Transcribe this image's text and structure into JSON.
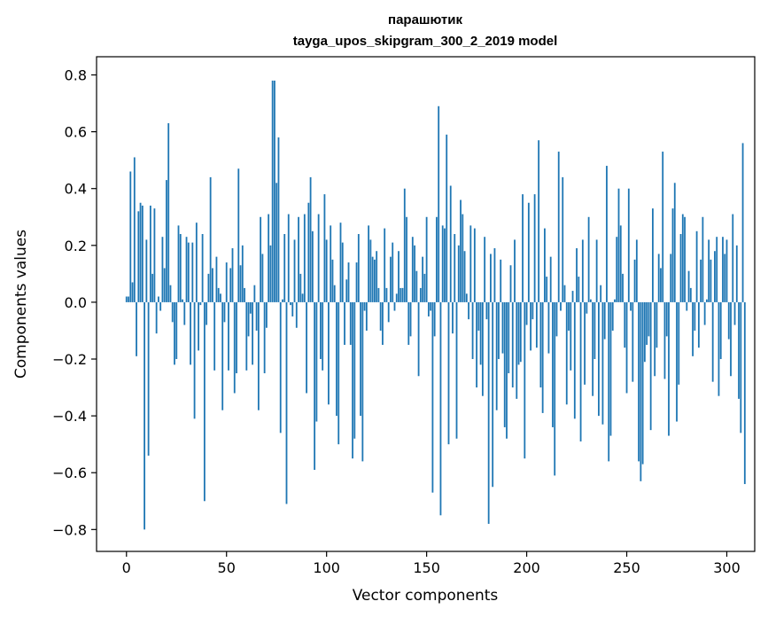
{
  "chart_data": {
    "type": "bar",
    "title": "парашютик",
    "subtitle": "tayga_upos_skipgram_300_2_2019 model",
    "xlabel": "Vector components",
    "ylabel": "Components values",
    "xlim": [
      -14.95,
      313.95
    ],
    "ylim": [
      -0.877,
      0.864
    ],
    "xticks": [
      0,
      50,
      100,
      150,
      200,
      250,
      300
    ],
    "xtick_labels": [
      "0",
      "50",
      "100",
      "150",
      "200",
      "250",
      "300"
    ],
    "yticks": [
      0.8,
      0.6,
      0.4,
      0.2,
      0.0,
      -0.2,
      -0.4,
      -0.6,
      -0.8
    ],
    "ytick_labels": [
      "0.8",
      "0.6",
      "0.4",
      "0.2",
      "0.0",
      "−0.2",
      "−0.4",
      "−0.6",
      "−0.8"
    ],
    "bar_color": "#1f77b4",
    "series": [
      {
        "name": "парашютик",
        "values": [
          0.02,
          0.02,
          0.46,
          0.07,
          0.51,
          -0.19,
          0.32,
          0.35,
          0.34,
          -0.8,
          0.22,
          -0.54,
          0.34,
          0.1,
          0.33,
          -0.11,
          0.02,
          -0.03,
          0.23,
          0.12,
          0.43,
          0.63,
          0.06,
          -0.07,
          -0.22,
          -0.2,
          0.27,
          0.24,
          0.01,
          -0.08,
          0.23,
          0.21,
          -0.22,
          0.21,
          -0.41,
          0.28,
          -0.17,
          -0.01,
          0.24,
          -0.7,
          -0.08,
          0.1,
          0.44,
          0.12,
          -0.24,
          0.16,
          0.05,
          0.03,
          -0.38,
          -0.07,
          0.14,
          -0.24,
          0.12,
          0.19,
          -0.32,
          -0.25,
          0.47,
          0.13,
          0.2,
          0.05,
          -0.24,
          -0.12,
          -0.04,
          -0.22,
          0.06,
          -0.1,
          -0.38,
          0.3,
          0.17,
          -0.25,
          -0.09,
          0.31,
          0.2,
          0.78,
          0.78,
          0.42,
          0.58,
          -0.46,
          0.01,
          0.24,
          -0.71,
          0.31,
          -0.01,
          -0.05,
          0.22,
          -0.09,
          0.3,
          0.1,
          0.03,
          0.31,
          -0.32,
          0.35,
          0.44,
          0.25,
          -0.59,
          -0.42,
          0.31,
          -0.2,
          -0.24,
          0.38,
          0.22,
          -0.36,
          0.27,
          0.15,
          0.06,
          -0.4,
          -0.5,
          0.28,
          0.21,
          -0.15,
          0.08,
          0.14,
          -0.15,
          -0.55,
          -0.48,
          0.14,
          0.24,
          -0.4,
          -0.56,
          -0.03,
          -0.1,
          0.27,
          0.22,
          0.16,
          0.15,
          0.18,
          0.05,
          -0.1,
          -0.15,
          0.26,
          0.05,
          -0.07,
          0.16,
          0.21,
          -0.03,
          0.03,
          0.18,
          0.05,
          0.05,
          0.4,
          0.3,
          -0.15,
          -0.12,
          0.23,
          0.2,
          0.11,
          -0.26,
          0.05,
          0.16,
          0.1,
          0.3,
          -0.05,
          -0.03,
          -0.67,
          -0.12,
          0.3,
          0.69,
          -0.75,
          0.27,
          0.26,
          0.59,
          -0.5,
          0.41,
          -0.11,
          0.24,
          -0.48,
          0.2,
          0.36,
          0.31,
          0.18,
          0.03,
          -0.06,
          0.27,
          -0.2,
          0.26,
          -0.3,
          -0.1,
          -0.22,
          -0.33,
          0.23,
          -0.06,
          -0.78,
          0.17,
          -0.65,
          0.19,
          -0.38,
          -0.2,
          0.15,
          -0.18,
          -0.44,
          -0.48,
          -0.25,
          0.13,
          -0.3,
          0.22,
          -0.34,
          -0.22,
          -0.21,
          0.38,
          -0.55,
          -0.08,
          0.35,
          -0.17,
          -0.06,
          0.38,
          -0.16,
          0.57,
          -0.3,
          -0.39,
          0.26,
          0.09,
          -0.18,
          0.16,
          -0.44,
          -0.61,
          -0.12,
          0.53,
          -0.03,
          0.44,
          0.06,
          -0.36,
          -0.1,
          -0.24,
          0.04,
          -0.41,
          0.19,
          0.09,
          -0.49,
          0.22,
          -0.29,
          -0.04,
          0.3,
          0.01,
          -0.33,
          -0.2,
          0.22,
          -0.4,
          0.06,
          -0.43,
          -0.13,
          0.48,
          -0.56,
          -0.47,
          -0.1,
          0.01,
          0.23,
          0.4,
          0.27,
          0.1,
          -0.16,
          -0.32,
          0.4,
          -0.03,
          -0.28,
          0.15,
          0.22,
          -0.56,
          -0.63,
          -0.57,
          -0.21,
          -0.15,
          -0.12,
          -0.45,
          0.33,
          -0.26,
          -0.16,
          0.17,
          0.12,
          0.53,
          -0.27,
          -0.12,
          -0.47,
          0.17,
          0.33,
          0.42,
          -0.42,
          -0.29,
          0.24,
          0.31,
          0.3,
          -0.03,
          0.11,
          0.05,
          -0.19,
          -0.1,
          0.25,
          -0.16,
          0.15,
          0.3,
          -0.08,
          0.01,
          0.22,
          0.15,
          -0.28,
          0.18,
          0.23,
          -0.33,
          -0.2,
          0.23,
          0.17,
          0.22,
          -0.13,
          -0.26,
          0.31,
          -0.08,
          0.2,
          -0.34,
          -0.46,
          0.56,
          -0.64
        ]
      }
    ]
  }
}
